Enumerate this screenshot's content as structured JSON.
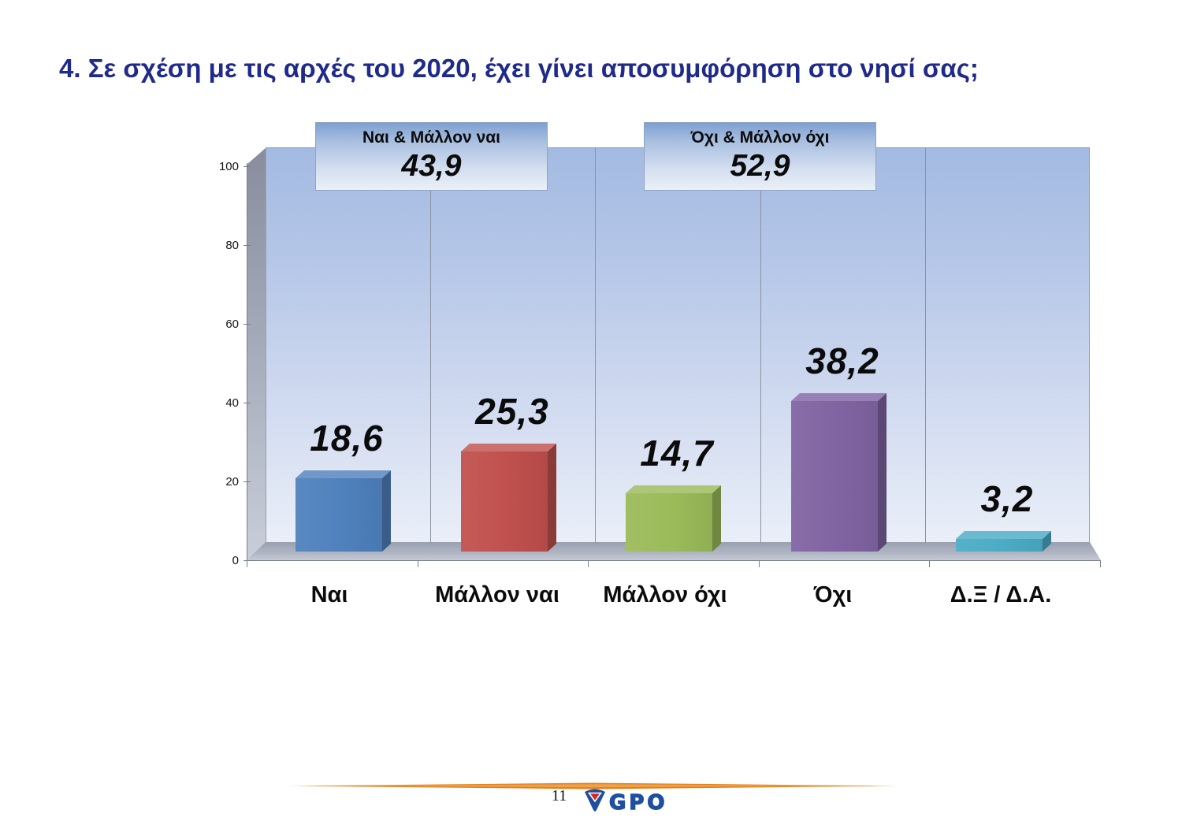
{
  "title": "4. Σε σχέση με τις αρχές του 2020, έχει γίνει αποσυμφόρηση στο νησί σας;",
  "title_color": "#1F2A8A",
  "callouts": [
    {
      "label": "Ναι & Μάλλον ναι",
      "value": "43,9"
    },
    {
      "label": "Όχι & Μάλλον όχι",
      "value": "52,9"
    }
  ],
  "chart_data": {
    "type": "bar",
    "categories": [
      "Ναι",
      "Μάλλον ναι",
      "Μάλλον όχι",
      "Όχι",
      "Δ.Ξ / Δ.Α."
    ],
    "values": [
      18.6,
      25.3,
      14.7,
      38.2,
      3.2
    ],
    "value_labels": [
      "18,6",
      "25,3",
      "14,7",
      "38,2",
      "3,2"
    ],
    "bar_colors": [
      "#4F81BD",
      "#C0504D",
      "#9BBB59",
      "#8064A2",
      "#4BACC6"
    ],
    "title": "",
    "xlabel": "",
    "ylabel": "",
    "ylim": [
      0,
      100
    ],
    "yticks": [
      0,
      20,
      40,
      60,
      80,
      100
    ],
    "grid": "vertical category separators",
    "style": "3D clustered column, light blue gradient back wall, gray side wall and floor"
  },
  "footer": {
    "page_number": "11",
    "logo_text": "GPO",
    "logo_color": "#1E4FA0",
    "logo_red": "#D7261D",
    "divider_color": "#E2801C"
  }
}
